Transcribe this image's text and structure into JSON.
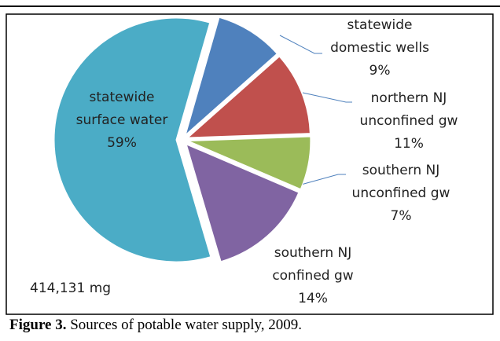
{
  "chart_data": {
    "type": "pie",
    "categories": [
      "statewide domestic wells",
      "northern NJ unconfined gw",
      "southern NJ unconfined gw",
      "southern NJ confined gw",
      "statewide surface water"
    ],
    "values": [
      9,
      11,
      7,
      14,
      59
    ],
    "value_labels": [
      "9%",
      "11%",
      "7%",
      "14%",
      "59%"
    ],
    "colors": [
      "#4f81bd",
      "#c0504d",
      "#9bbb59",
      "#8064a2",
      "#4bacc6"
    ],
    "annotation": "414,131 mg"
  },
  "caption": {
    "label": "Figure 3.",
    "text": "Sources of potable water supply, 2009."
  }
}
